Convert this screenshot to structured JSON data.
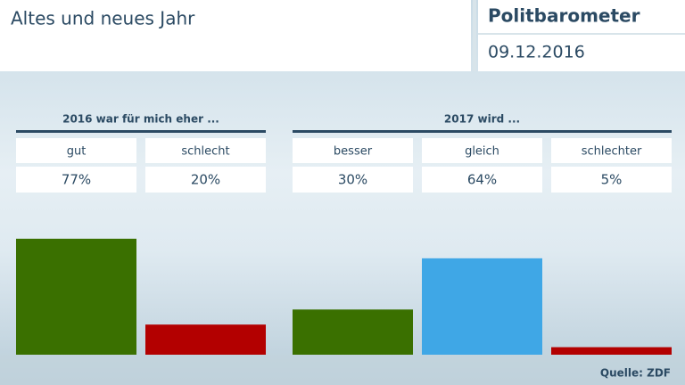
{
  "header": {
    "title": "Altes und neues Jahr",
    "brand": "Politbarometer",
    "date": "09.12.2016",
    "source": "Quelle: ZDF"
  },
  "chart_data": [
    {
      "type": "bar",
      "title": "2016 war für mich eher ...",
      "categories": [
        "gut",
        "schlecht"
      ],
      "values": [
        77,
        20
      ],
      "value_labels": [
        "77%",
        "20%"
      ],
      "colors": [
        "#3a7000",
        "#b30000"
      ]
    },
    {
      "type": "bar",
      "title": "2017 wird ...",
      "categories": [
        "besser",
        "gleich",
        "schlechter"
      ],
      "values": [
        30,
        64,
        5
      ],
      "value_labels": [
        "30%",
        "64%",
        "5%"
      ],
      "colors": [
        "#3a7000",
        "#3fa7e6",
        "#b30000"
      ]
    }
  ]
}
